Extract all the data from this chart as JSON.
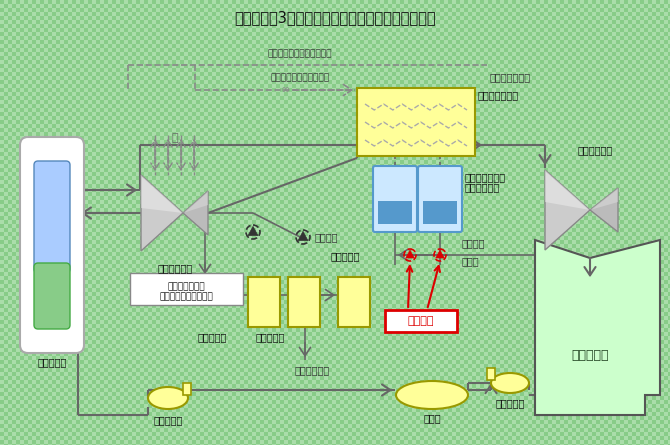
{
  "title": "伊方発電所3号機　湿分分離加熱器廻り系統概略図",
  "bg_color_light": "#aaddaa",
  "bg_color_dark": "#88cc88",
  "title_color": "#111111",
  "title_fontsize": 10.5,
  "line_color": "#666666",
  "dashed_color": "#888888"
}
